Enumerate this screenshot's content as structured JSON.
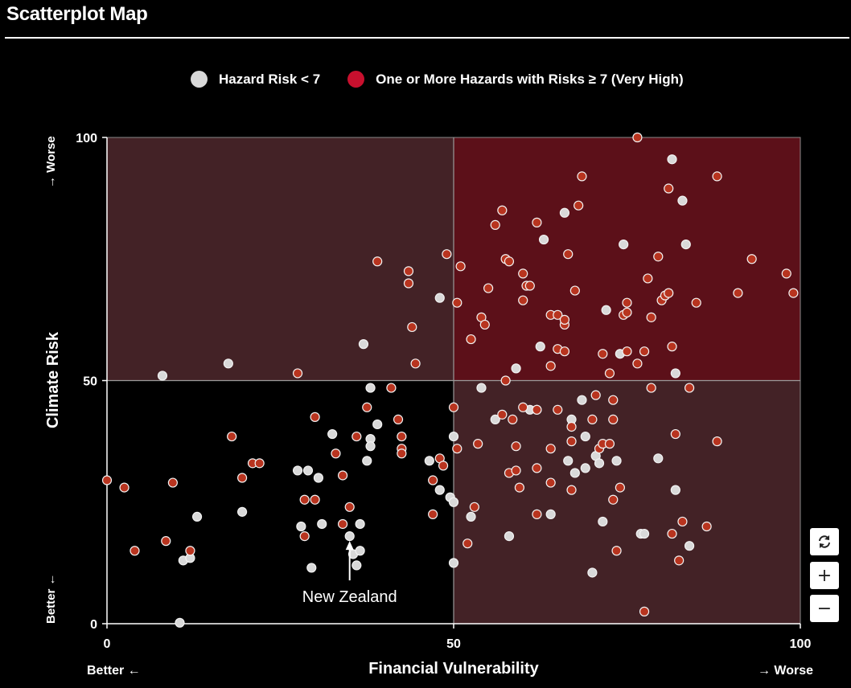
{
  "header": {
    "title": "Scatterplot Map"
  },
  "legend": [
    {
      "label": "Hazard Risk < 7",
      "color": "#d9d9d9"
    },
    {
      "label": "One or More Hazards with Risks ≥ 7 (Very High)",
      "color": "#c8102e"
    }
  ],
  "controls": {
    "reset_icon": "refresh-icon",
    "zoom_in_label": "+",
    "zoom_out_label": "−"
  },
  "colors": {
    "quadrant_low_low": "#000000",
    "quadrant_mixed": "#432226",
    "quadrant_high_high": "#5c1019",
    "point_low": "#d9d9d9",
    "point_high": "#b8341f"
  },
  "annotation": {
    "label": "New Zealand",
    "x": 35,
    "y": 18
  },
  "chart_data": {
    "type": "scatter",
    "title": "",
    "xlabel": "Financial Vulnerability",
    "ylabel": "Climate Risk",
    "xlim": [
      0,
      100
    ],
    "ylim": [
      0,
      100
    ],
    "xticks": [
      "0",
      "50",
      "100"
    ],
    "yticks": [
      "0",
      "50",
      "100"
    ],
    "x_better_label": "Better ←",
    "x_worse_label": "→ Worse",
    "y_better_label": "Better ←",
    "y_worse_label": "→ Worse",
    "quadrant_split": {
      "x": 50,
      "y": 50
    },
    "series": [
      {
        "name": "Hazard Risk < 7",
        "points": [
          [
            8,
            51
          ],
          [
            17.5,
            53.5
          ],
          [
            37,
            57.5
          ],
          [
            48,
            67
          ],
          [
            13,
            22
          ],
          [
            11,
            13
          ],
          [
            12,
            13.5
          ],
          [
            10.5,
            0.2
          ],
          [
            19.5,
            23
          ],
          [
            27.5,
            31.5
          ],
          [
            29,
            31.5
          ],
          [
            30.5,
            30
          ],
          [
            28,
            20
          ],
          [
            29.5,
            11.5
          ],
          [
            31,
            20.5
          ],
          [
            32.5,
            39
          ],
          [
            35,
            18
          ],
          [
            35.5,
            14.3
          ],
          [
            36.5,
            15
          ],
          [
            36,
            12
          ],
          [
            36.5,
            20.5
          ],
          [
            37.5,
            33.5
          ],
          [
            38,
            48.5
          ],
          [
            38,
            38
          ],
          [
            38,
            36.5
          ],
          [
            39,
            41
          ],
          [
            46.5,
            33.5
          ],
          [
            50,
            38.5
          ],
          [
            48,
            27.5
          ],
          [
            49.5,
            26
          ],
          [
            50,
            25
          ],
          [
            50,
            12.5
          ],
          [
            52.5,
            22
          ],
          [
            54,
            48.5
          ],
          [
            56,
            42
          ],
          [
            58,
            18
          ],
          [
            61,
            44
          ],
          [
            62,
            44
          ],
          [
            63,
            79
          ],
          [
            62.5,
            57
          ],
          [
            64,
            22.5
          ],
          [
            66,
            84.5
          ],
          [
            67,
            42
          ],
          [
            66.5,
            33.5
          ],
          [
            67.5,
            31
          ],
          [
            68.5,
            46
          ],
          [
            69,
            38.5
          ],
          [
            69,
            32
          ],
          [
            70,
            10.5
          ],
          [
            70.5,
            34.5
          ],
          [
            71,
            33
          ],
          [
            71.5,
            21
          ],
          [
            72,
            64.5
          ],
          [
            74,
            55.5
          ],
          [
            74.5,
            78
          ],
          [
            73.5,
            33.5
          ],
          [
            77,
            18.5
          ],
          [
            77.5,
            18.5
          ],
          [
            79.5,
            34
          ],
          [
            81.5,
            95.5
          ],
          [
            83,
            87
          ],
          [
            83.5,
            78
          ],
          [
            82,
            51.5
          ],
          [
            82,
            27.5
          ],
          [
            84,
            16
          ],
          [
            59,
            52.5
          ]
        ]
      },
      {
        "name": "One or More Hazards with Risks ≥ 7 (Very High)",
        "points": [
          [
            0,
            29.5
          ],
          [
            2.5,
            28
          ],
          [
            4,
            15
          ],
          [
            8.5,
            17
          ],
          [
            9.5,
            29
          ],
          [
            12,
            15
          ],
          [
            18,
            38.5
          ],
          [
            19.5,
            30
          ],
          [
            21,
            33
          ],
          [
            22,
            33
          ],
          [
            27.5,
            51.5
          ],
          [
            30,
            42.5
          ],
          [
            28.5,
            25.5
          ],
          [
            28.5,
            18
          ],
          [
            30,
            25.5
          ],
          [
            33,
            35
          ],
          [
            34,
            30.5
          ],
          [
            34,
            20.5
          ],
          [
            35,
            24
          ],
          [
            36,
            38.5
          ],
          [
            37.5,
            44.5
          ],
          [
            39,
            74.5
          ],
          [
            41,
            48.5
          ],
          [
            42,
            42
          ],
          [
            42.5,
            36
          ],
          [
            42.5,
            35
          ],
          [
            42.5,
            38.5
          ],
          [
            43.5,
            72.5
          ],
          [
            43.5,
            70
          ],
          [
            44,
            61
          ],
          [
            44.5,
            53.5
          ],
          [
            47,
            22.5
          ],
          [
            47,
            29.5
          ],
          [
            48,
            34
          ],
          [
            48.5,
            32.5
          ],
          [
            49,
            76
          ],
          [
            50,
            44.5
          ],
          [
            50.5,
            66
          ],
          [
            50.5,
            36
          ],
          [
            51,
            73.5
          ],
          [
            52,
            16.5
          ],
          [
            52.5,
            58.5
          ],
          [
            53,
            24
          ],
          [
            53.5,
            37
          ],
          [
            54,
            63
          ],
          [
            55,
            69
          ],
          [
            54.5,
            61.5
          ],
          [
            56,
            82
          ],
          [
            57,
            85
          ],
          [
            57,
            43
          ],
          [
            57.5,
            75
          ],
          [
            57.5,
            50
          ],
          [
            58,
            74.5
          ],
          [
            58.5,
            42
          ],
          [
            58,
            31
          ],
          [
            59,
            31.5
          ],
          [
            59,
            36.5
          ],
          [
            59.5,
            28
          ],
          [
            60,
            72
          ],
          [
            60.5,
            69.5
          ],
          [
            60,
            66.5
          ],
          [
            60,
            44.5
          ],
          [
            61,
            69.5
          ],
          [
            62,
            82.5
          ],
          [
            62,
            32
          ],
          [
            62,
            22.5
          ],
          [
            62,
            44
          ],
          [
            64,
            63.5
          ],
          [
            65,
            63.5
          ],
          [
            65,
            44
          ],
          [
            64,
            53
          ],
          [
            64,
            36
          ],
          [
            64,
            29
          ],
          [
            65,
            56.5
          ],
          [
            66,
            56
          ],
          [
            66,
            61.5
          ],
          [
            66,
            62.5
          ],
          [
            66.5,
            76
          ],
          [
            67,
            37.5
          ],
          [
            67,
            27.5
          ],
          [
            67,
            40.5
          ],
          [
            67.5,
            68.5
          ],
          [
            68,
            86
          ],
          [
            68.5,
            92
          ],
          [
            70,
            42
          ],
          [
            70.5,
            47
          ],
          [
            71,
            36
          ],
          [
            71.5,
            37
          ],
          [
            71.5,
            55.5
          ],
          [
            72.5,
            37
          ],
          [
            72.5,
            51.5
          ],
          [
            73,
            42
          ],
          [
            73,
            25.5
          ],
          [
            73.5,
            15
          ],
          [
            73,
            46
          ],
          [
            74,
            28
          ],
          [
            74.5,
            63.5
          ],
          [
            75,
            64
          ],
          [
            75,
            66
          ],
          [
            75,
            56
          ],
          [
            76.5,
            53.5
          ],
          [
            76.5,
            100
          ],
          [
            77.5,
            56
          ],
          [
            77.5,
            2.5
          ],
          [
            78,
            71
          ],
          [
            78.5,
            63
          ],
          [
            78.5,
            48.5
          ],
          [
            79.5,
            75.5
          ],
          [
            80,
            66.5
          ],
          [
            80.5,
            67.5
          ],
          [
            81,
            68
          ],
          [
            81,
            89.5
          ],
          [
            81.5,
            57
          ],
          [
            81.5,
            18.5
          ],
          [
            82.5,
            13
          ],
          [
            82,
            39
          ],
          [
            83,
            21
          ],
          [
            84,
            48.5
          ],
          [
            85,
            66
          ],
          [
            86.5,
            20
          ],
          [
            88,
            92
          ],
          [
            88,
            37.5
          ],
          [
            91,
            68
          ],
          [
            93,
            75
          ],
          [
            98,
            72
          ],
          [
            99,
            68
          ]
        ]
      }
    ]
  }
}
